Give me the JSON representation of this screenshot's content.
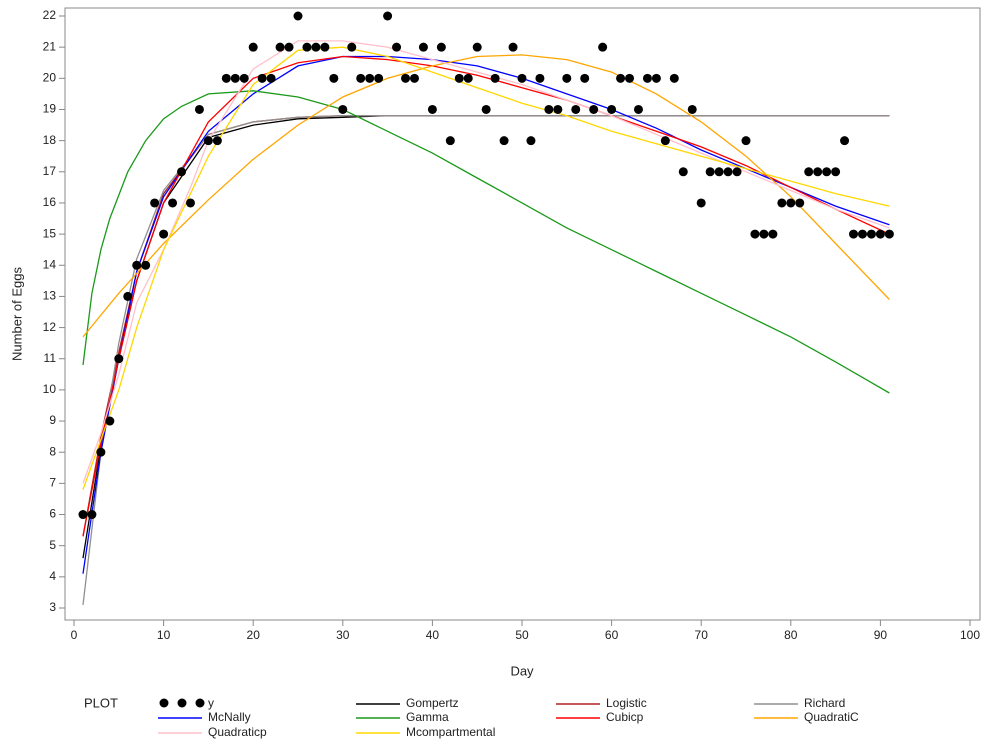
{
  "chart_data": {
    "type": "line",
    "x_label": "Day",
    "y_label": "Number of Eggs",
    "xlim": [
      0,
      100
    ],
    "xticks": [
      0,
      10,
      20,
      30,
      40,
      50,
      60,
      70,
      80,
      90,
      100
    ],
    "ylim": [
      3,
      22
    ],
    "yticks": [
      3,
      4,
      5,
      6,
      7,
      8,
      9,
      10,
      11,
      12,
      13,
      14,
      15,
      16,
      17,
      18,
      19,
      20,
      21,
      22
    ],
    "legend_title": "PLOT",
    "series": [
      {
        "name": "y",
        "style": "markers",
        "color": "#000000",
        "x": [
          1,
          2,
          3,
          4,
          5,
          6,
          7,
          8,
          9,
          10,
          11,
          12,
          13,
          14,
          15,
          16,
          17,
          18,
          19,
          20,
          21,
          22,
          23,
          24,
          25,
          26,
          27,
          28,
          29,
          30,
          31,
          32,
          33,
          34,
          35,
          36,
          37,
          38,
          39,
          40,
          41,
          42,
          43,
          44,
          45,
          46,
          47,
          48,
          49,
          50,
          51,
          52,
          53,
          54,
          55,
          56,
          57,
          58,
          59,
          60,
          61,
          62,
          63,
          64,
          65,
          66,
          67,
          68,
          69,
          70,
          71,
          72,
          73,
          74,
          75,
          76,
          77,
          78,
          79,
          80,
          81,
          82,
          83,
          84,
          85,
          86,
          87,
          88,
          89,
          90,
          91
        ],
        "values": [
          6,
          6,
          8,
          9,
          11,
          13,
          14,
          14,
          16,
          15,
          16,
          17,
          16,
          19,
          18,
          18,
          20,
          20,
          20,
          21,
          20,
          20,
          21,
          21,
          22,
          21,
          21,
          21,
          20,
          19,
          21,
          20,
          20,
          20,
          22,
          21,
          20,
          20,
          21,
          19,
          21,
          18,
          20,
          20,
          21,
          19,
          20,
          18,
          21,
          20,
          18,
          20,
          19,
          19,
          20,
          19,
          20,
          19,
          21,
          19,
          20,
          20,
          19,
          20,
          20,
          18,
          20,
          17,
          19,
          16,
          17,
          17,
          17,
          17,
          18,
          15,
          15,
          15,
          16,
          16,
          16,
          17,
          17,
          17,
          17,
          18,
          15,
          15,
          15,
          15,
          15
        ]
      },
      {
        "name": "Gompertz",
        "style": "line",
        "color": "#000000",
        "x": [
          1,
          3,
          5,
          7,
          10,
          15,
          20,
          25,
          30,
          35,
          40,
          45,
          50,
          55,
          60,
          65,
          70,
          75,
          80,
          85,
          91
        ],
        "values": [
          4.6,
          8.2,
          11,
          13.5,
          16,
          18.1,
          18.5,
          18.7,
          18.75,
          18.8,
          18.8,
          18.8,
          18.8,
          18.8,
          18.8,
          18.8,
          18.8,
          18.8,
          18.8,
          18.8,
          18.8
        ]
      },
      {
        "name": "Logistic",
        "style": "line",
        "color": "#b22222",
        "x": [
          1,
          3,
          5,
          7,
          10,
          15,
          20,
          25,
          30,
          35,
          40,
          45,
          50,
          55,
          60,
          65,
          70,
          75,
          80,
          85,
          91
        ],
        "values": [
          5.3,
          8.5,
          11.2,
          13.8,
          16.3,
          18.2,
          18.6,
          18.75,
          18.8,
          18.8,
          18.8,
          18.8,
          18.8,
          18.8,
          18.8,
          18.8,
          18.8,
          18.8,
          18.8,
          18.8,
          18.8
        ]
      },
      {
        "name": "Richard",
        "style": "line",
        "color": "#909090",
        "x": [
          1,
          3,
          5,
          7,
          10,
          15,
          20,
          25,
          30,
          35,
          40,
          45,
          50,
          55,
          60,
          65,
          70,
          75,
          80,
          85,
          91
        ],
        "values": [
          3.1,
          8,
          11.5,
          14.2,
          16.4,
          18.2,
          18.6,
          18.75,
          18.8,
          18.8,
          18.8,
          18.8,
          18.8,
          18.8,
          18.8,
          18.8,
          18.8,
          18.8,
          18.8,
          18.8,
          18.8
        ]
      },
      {
        "name": "McNally",
        "style": "line",
        "color": "#0000ff",
        "x": [
          1,
          3,
          5,
          7,
          10,
          15,
          20,
          25,
          30,
          35,
          40,
          45,
          50,
          55,
          60,
          65,
          70,
          75,
          80,
          85,
          91
        ],
        "values": [
          4.1,
          8,
          11,
          13.8,
          16.2,
          18.3,
          19.5,
          20.4,
          20.7,
          20.7,
          20.6,
          20.4,
          20,
          19.5,
          19,
          18.4,
          17.7,
          17.1,
          16.5,
          15.9,
          15.3
        ]
      },
      {
        "name": "Gamma",
        "style": "line",
        "color": "#1a9a1a",
        "x": [
          1,
          2,
          3,
          4,
          6,
          8,
          10,
          12,
          15,
          20,
          25,
          30,
          35,
          40,
          45,
          50,
          55,
          60,
          65,
          70,
          75,
          80,
          85,
          91
        ],
        "values": [
          10.8,
          13.1,
          14.5,
          15.5,
          17,
          18,
          18.7,
          19.1,
          19.5,
          19.6,
          19.4,
          19,
          18.3,
          17.6,
          16.8,
          16,
          15.2,
          14.5,
          13.8,
          13.1,
          12.4,
          11.7,
          10.9,
          9.9
        ]
      },
      {
        "name": "Cubicp",
        "style": "line",
        "color": "#ff0000",
        "x": [
          1,
          3,
          5,
          7,
          10,
          15,
          20,
          25,
          30,
          35,
          40,
          45,
          50,
          55,
          60,
          65,
          70,
          75,
          80,
          85,
          91
        ],
        "values": [
          5.3,
          8.3,
          11,
          13.5,
          16,
          18.6,
          20,
          20.5,
          20.7,
          20.6,
          20.4,
          20.1,
          19.7,
          19.3,
          18.8,
          18.3,
          17.8,
          17.2,
          16.5,
          15.8,
          15
        ]
      },
      {
        "name": "QuadratiC",
        "style": "line",
        "color": "#ffa500",
        "x": [
          1,
          5,
          10,
          15,
          20,
          25,
          30,
          35,
          40,
          45,
          50,
          55,
          60,
          65,
          70,
          75,
          80,
          85,
          91
        ],
        "values": [
          11.7,
          13.1,
          14.7,
          16.1,
          17.4,
          18.5,
          19.4,
          20,
          20.4,
          20.7,
          20.75,
          20.6,
          20.2,
          19.5,
          18.6,
          17.5,
          16.2,
          14.7,
          12.9
        ]
      },
      {
        "name": "Quadraticp",
        "style": "line",
        "color": "#ffc0cb",
        "x": [
          1,
          3,
          5,
          7,
          10,
          13,
          15,
          20,
          25,
          30,
          35,
          40,
          45,
          50,
          55,
          60,
          65,
          70,
          75,
          80,
          85,
          91
        ],
        "values": [
          7,
          8.6,
          10.5,
          12.8,
          14.5,
          16.5,
          18,
          20.3,
          21.2,
          21.2,
          21,
          20.6,
          20.2,
          19.8,
          19.3,
          18.8,
          18.2,
          17.6,
          17,
          16.4,
          15.8,
          15.2
        ]
      },
      {
        "name": "Mcompartmental",
        "style": "line",
        "color": "#ffd700",
        "x": [
          1,
          3,
          5,
          7,
          10,
          15,
          20,
          25,
          30,
          35,
          40,
          45,
          50,
          55,
          60,
          65,
          70,
          75,
          80,
          85,
          91
        ],
        "values": [
          6.8,
          8.4,
          10,
          12,
          14.5,
          17.5,
          19.8,
          20.9,
          21,
          20.7,
          20.2,
          19.7,
          19.2,
          18.8,
          18.3,
          17.9,
          17.5,
          17.1,
          16.7,
          16.3,
          15.9
        ]
      }
    ]
  }
}
